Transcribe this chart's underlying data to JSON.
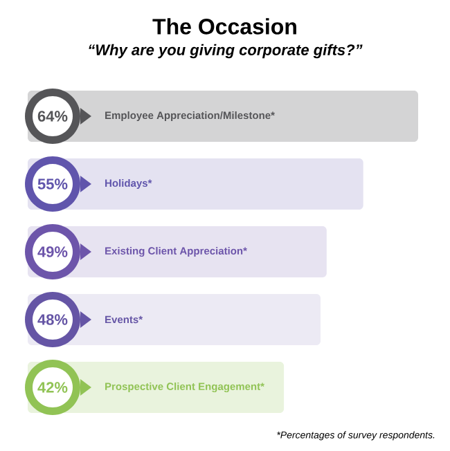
{
  "chart_data": {
    "type": "bar",
    "orientation": "horizontal",
    "title": "The Occasion",
    "subtitle": "“Why are you giving corporate gifts?”",
    "categories": [
      "Employee Appreciation/Milestone*",
      "Holidays*",
      "Existing Client Appreciation*",
      "Events*",
      "Prospective Client Engagement*"
    ],
    "values": [
      64,
      55,
      49,
      48,
      42
    ],
    "value_labels": [
      "64%",
      "55%",
      "49%",
      "48%",
      "42%"
    ],
    "colors": [
      "#d4d4d5",
      "#e4e2f1",
      "#e7e3f1",
      "#eceaf4",
      "#e9f3dd"
    ],
    "annotations": [
      "*Percentages of survey respondents."
    ]
  }
}
